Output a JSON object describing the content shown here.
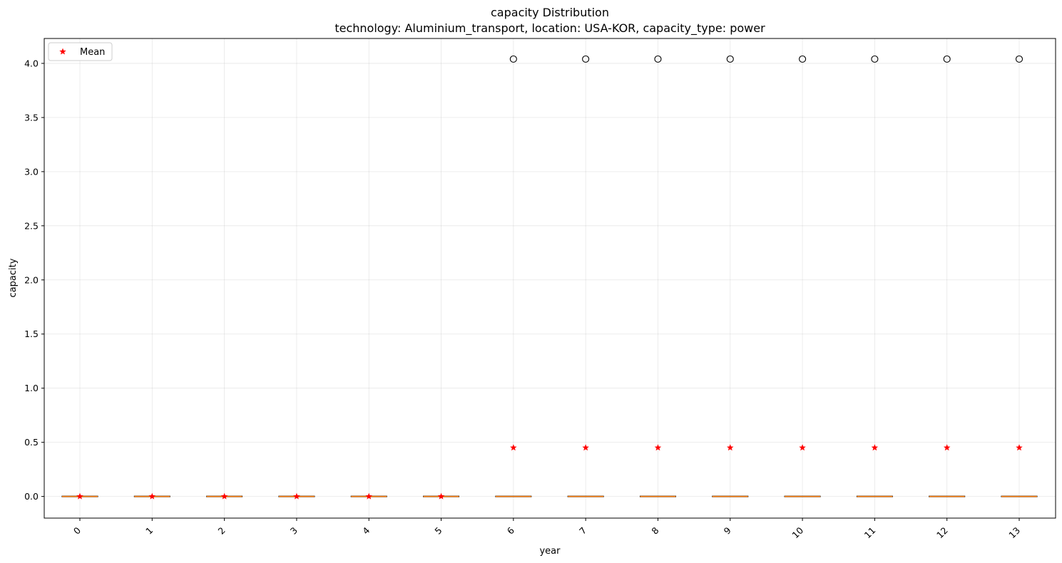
{
  "chart_data": {
    "type": "box",
    "title": "capacity Distribution",
    "subtitle": "technology: Aluminium_transport, location: USA-KOR, capacity_type: power",
    "xlabel": "year",
    "ylabel": "capacity",
    "categories": [
      "0",
      "1",
      "2",
      "3",
      "4",
      "5",
      "6",
      "7",
      "8",
      "9",
      "10",
      "11",
      "12",
      "13"
    ],
    "ylim": [
      -0.2,
      4.23
    ],
    "yticks": [
      "0.0",
      "0.5",
      "1.0",
      "1.5",
      "2.0",
      "2.5",
      "3.0",
      "3.5",
      "4.0"
    ],
    "grid": true,
    "legend": {
      "position": "top-left",
      "entries": [
        "Mean"
      ]
    },
    "series": [
      {
        "name": "boxes",
        "q1": [
          0,
          0,
          0,
          0,
          0,
          0,
          0,
          0,
          0,
          0,
          0,
          0,
          0,
          0
        ],
        "median": [
          0,
          0,
          0,
          0,
          0,
          0,
          0,
          0,
          0,
          0,
          0,
          0,
          0,
          0
        ],
        "q3": [
          0,
          0,
          0,
          0,
          0,
          0,
          0,
          0,
          0,
          0,
          0,
          0,
          0,
          0
        ],
        "whisker_low": [
          0,
          0,
          0,
          0,
          0,
          0,
          0,
          0,
          0,
          0,
          0,
          0,
          0,
          0
        ],
        "whisker_high": [
          0,
          0,
          0,
          0,
          0,
          0,
          0,
          0,
          0,
          0,
          0,
          0,
          0,
          0
        ]
      },
      {
        "name": "Mean",
        "values": [
          0,
          0,
          0,
          0,
          0,
          0,
          0.45,
          0.45,
          0.45,
          0.45,
          0.45,
          0.45,
          0.45,
          0.45
        ]
      },
      {
        "name": "outliers",
        "values": [
          null,
          null,
          null,
          null,
          null,
          null,
          4.04,
          4.04,
          4.04,
          4.04,
          4.04,
          4.04,
          4.04,
          4.04
        ]
      }
    ],
    "colors": {
      "median": "#ff7f0e",
      "mean": "#ff0000",
      "outlier": "#000000"
    }
  }
}
